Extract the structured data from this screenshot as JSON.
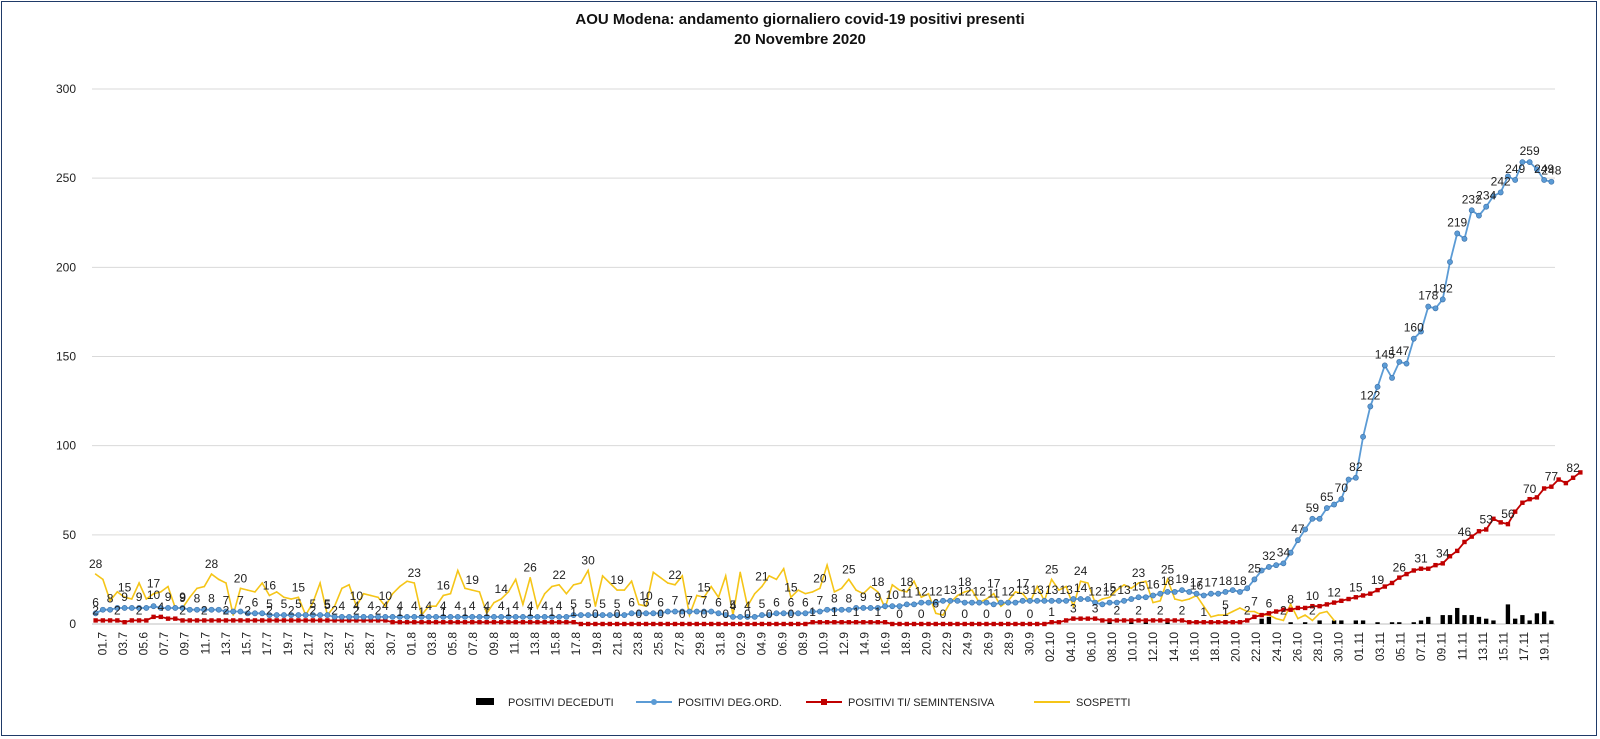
{
  "chart_data": {
    "type": "line",
    "title": "AOU Modena: andamento giornaliero covid-19 positivi presenti",
    "subtitle": "20 Novembre 2020",
    "xlabel": "",
    "ylabel": "",
    "ylim": [
      0,
      300
    ],
    "yticks": [
      0,
      50,
      100,
      150,
      200,
      250,
      300
    ],
    "grid": true,
    "legend_position": "bottom",
    "x_tick_labels": [
      "01.7",
      "03.7",
      "05.6",
      "07.7",
      "09.7",
      "11.7",
      "13.7",
      "15.7",
      "17.7",
      "19.7",
      "21.7",
      "23.7",
      "25.7",
      "28.7",
      "30.7",
      "01.8",
      "03.8",
      "05.8",
      "07.8",
      "09.8",
      "11.8",
      "13.8",
      "15.8",
      "17.8",
      "19.8",
      "21.8",
      "23.8",
      "25.8",
      "27.8",
      "29.8",
      "31.8",
      "02.9",
      "04.9",
      "06.9",
      "08.9",
      "10.9",
      "12.9",
      "14.9",
      "16.9",
      "18.9",
      "20.9",
      "22.9",
      "24.9",
      "26.9",
      "28.9",
      "30.9",
      "02.10",
      "04.10",
      "06.10",
      "08.10",
      "10.10",
      "12.10",
      "14.10",
      "16.10",
      "18.10",
      "20.10",
      "22.10",
      "24.10",
      "26.10",
      "28.10",
      "30.10",
      "01.11",
      "03.11",
      "05.11",
      "07.11",
      "09.11",
      "11.11",
      "13.11",
      "15.11",
      "17.11",
      "19.11"
    ],
    "series": [
      {
        "name": "POSITIVI DECEDUTI",
        "type": "bar",
        "color": "#000000",
        "values": [
          0,
          0,
          0,
          0,
          0,
          0,
          0,
          0,
          0,
          0,
          0,
          0,
          0,
          0,
          0,
          0,
          0,
          0,
          0,
          0,
          0,
          0,
          0,
          0,
          0,
          0,
          0,
          0,
          0,
          0,
          0,
          0,
          0,
          0,
          0,
          0,
          0,
          0,
          0,
          0,
          0,
          0,
          0,
          0,
          0,
          0,
          0,
          0,
          0,
          0,
          0,
          0,
          0,
          0,
          0,
          0,
          0,
          0,
          0,
          0,
          0,
          0,
          0,
          0,
          0,
          0,
          0,
          0,
          0,
          0,
          0,
          0,
          0,
          0,
          0,
          0,
          0,
          0,
          0,
          0,
          0,
          0,
          0,
          0,
          0,
          0,
          0,
          0,
          0,
          0,
          0,
          0,
          0,
          0,
          0,
          0,
          0,
          0,
          0,
          0,
          0,
          0,
          0,
          0,
          0,
          0,
          0,
          0,
          0,
          0,
          0,
          0,
          0,
          0,
          0,
          0,
          0,
          0,
          0,
          0,
          0,
          0,
          0,
          0,
          0,
          0,
          0,
          0,
          0,
          0,
          0,
          0,
          0,
          0,
          0,
          0,
          0,
          0,
          0,
          0,
          1,
          0,
          0,
          1,
          0,
          1,
          0,
          0,
          1,
          0,
          0,
          0,
          2,
          0,
          1,
          0,
          1,
          1,
          1,
          0,
          0,
          3,
          4,
          0,
          0,
          1,
          0,
          1,
          0,
          2,
          0,
          2,
          2,
          0,
          2,
          2,
          0,
          1,
          0,
          1,
          1,
          0,
          1,
          2,
          4,
          0,
          5,
          5,
          9,
          5,
          5,
          4,
          3,
          2,
          0,
          11,
          3,
          5,
          2,
          6,
          7,
          2
        ]
      },
      {
        "name": "POSITIVI DEG.ORD.",
        "type": "line",
        "color": "#5b9bd5",
        "values": [
          6,
          8,
          8,
          9,
          9,
          9,
          9,
          9,
          10,
          9,
          9,
          9,
          9,
          8,
          8,
          8,
          8,
          8,
          7,
          7,
          7,
          6,
          6,
          6,
          5,
          5,
          5,
          5,
          5,
          5,
          5,
          5,
          5,
          4,
          4,
          4,
          4,
          4,
          4,
          4,
          4,
          4,
          4,
          4,
          4,
          4,
          4,
          4,
          4,
          4,
          4,
          4,
          4,
          4,
          4,
          4,
          4,
          4,
          4,
          4,
          4,
          4,
          4,
          4,
          4,
          4,
          5,
          5,
          5,
          5,
          5,
          5,
          5,
          5,
          6,
          6,
          6,
          6,
          6,
          7,
          7,
          7,
          7,
          7,
          7,
          7,
          6,
          5,
          4,
          4,
          4,
          4,
          5,
          5,
          6,
          6,
          6,
          6,
          6,
          7,
          7,
          8,
          8,
          8,
          8,
          9,
          9,
          9,
          9,
          10,
          10,
          10,
          11,
          11,
          12,
          12,
          12,
          13,
          13,
          13,
          12,
          12,
          12,
          12,
          11,
          12,
          12,
          12,
          13,
          13,
          13,
          13,
          13,
          13,
          13,
          14,
          14,
          14,
          12,
          11,
          12,
          12,
          13,
          14,
          15,
          15,
          16,
          17,
          18,
          18,
          19,
          18,
          17,
          16,
          17,
          17,
          18,
          19,
          18,
          20,
          25,
          30,
          32,
          33,
          34,
          40,
          47,
          53,
          59,
          59,
          65,
          67,
          70,
          81,
          82,
          105,
          122,
          133,
          145,
          138,
          147,
          146,
          160,
          164,
          178,
          177,
          182,
          203,
          219,
          216,
          232,
          229,
          234,
          240,
          242,
          251,
          249,
          259,
          259,
          255,
          249,
          248
        ]
      },
      {
        "name": "POSITIVI TI/ SEMINTENSIVA",
        "type": "line",
        "color": "#c00000",
        "values": [
          2,
          2,
          2,
          2,
          1,
          2,
          2,
          2,
          4,
          4,
          3,
          3,
          2,
          2,
          2,
          2,
          2,
          2,
          2,
          2,
          2,
          2,
          2,
          2,
          2,
          2,
          2,
          2,
          2,
          2,
          2,
          2,
          2,
          2,
          2,
          2,
          2,
          2,
          2,
          2,
          2,
          1,
          1,
          1,
          1,
          1,
          1,
          1,
          1,
          1,
          1,
          1,
          1,
          1,
          1,
          1,
          1,
          1,
          1,
          1,
          1,
          1,
          1,
          1,
          1,
          1,
          1,
          0,
          0,
          0,
          0,
          0,
          0,
          0,
          0,
          0,
          0,
          0,
          0,
          0,
          0,
          0,
          0,
          0,
          0,
          0,
          0,
          0,
          0,
          0,
          0,
          0,
          0,
          0,
          0,
          0,
          0,
          0,
          0,
          1,
          1,
          1,
          1,
          1,
          1,
          1,
          1,
          1,
          1,
          1,
          0,
          0,
          0,
          0,
          0,
          0,
          0,
          0,
          0,
          0,
          0,
          0,
          0,
          0,
          0,
          0,
          0,
          0,
          0,
          0,
          0,
          0,
          1,
          1,
          2,
          3,
          3,
          3,
          3,
          2,
          2,
          2,
          2,
          2,
          2,
          2,
          2,
          2,
          2,
          2,
          2,
          1,
          1,
          1,
          1,
          1,
          1,
          1,
          1,
          2,
          4,
          5,
          6,
          7,
          8,
          8,
          9,
          9,
          10,
          10,
          11,
          12,
          13,
          14,
          15,
          16,
          17,
          19,
          21,
          23,
          26,
          28,
          30,
          31,
          31,
          33,
          34,
          38,
          41,
          46,
          49,
          52,
          53,
          59,
          57,
          56,
          63,
          68,
          70,
          71,
          76,
          77,
          81,
          79,
          82,
          85
        ]
      },
      {
        "name": "SOSPETTI",
        "type": "line",
        "color": "#f5c518",
        "values": [
          28,
          25,
          13,
          18,
          15,
          14,
          23,
          14,
          17,
          18,
          21,
          9,
          9,
          15,
          20,
          21,
          28,
          25,
          23,
          5,
          20,
          19,
          18,
          23,
          16,
          18,
          15,
          14,
          15,
          5,
          12,
          23,
          5,
          10,
          20,
          22,
          10,
          17,
          16,
          15,
          10,
          17,
          21,
          24,
          23,
          5,
          10,
          10,
          16,
          17,
          30,
          20,
          19,
          18,
          6,
          12,
          14,
          18,
          25,
          11,
          26,
          9,
          17,
          21,
          22,
          17,
          22,
          23,
          30,
          10,
          27,
          23,
          19,
          19,
          24,
          11,
          10,
          29,
          26,
          23,
          22,
          27,
          5,
          16,
          15,
          21,
          15,
          27,
          5,
          29,
          10,
          17,
          21,
          27,
          25,
          31,
          15,
          19,
          17,
          18,
          20,
          33,
          18,
          20,
          25,
          19,
          17,
          21,
          18,
          9,
          22,
          19,
          18,
          24,
          15,
          17,
          6,
          5,
          12,
          16,
          18,
          19,
          12,
          14,
          17,
          10,
          13,
          18,
          17,
          12,
          21,
          13,
          25,
          19,
          21,
          10,
          24,
          23,
          12,
          14,
          15,
          19,
          22,
          20,
          23,
          24,
          12,
          13,
          25,
          14,
          13,
          14,
          16,
          10,
          4,
          5,
          5,
          7,
          9,
          7,
          7,
          5,
          5,
          3,
          2,
          11,
          3,
          5,
          2,
          6,
          7,
          2
        ]
      }
    ]
  }
}
